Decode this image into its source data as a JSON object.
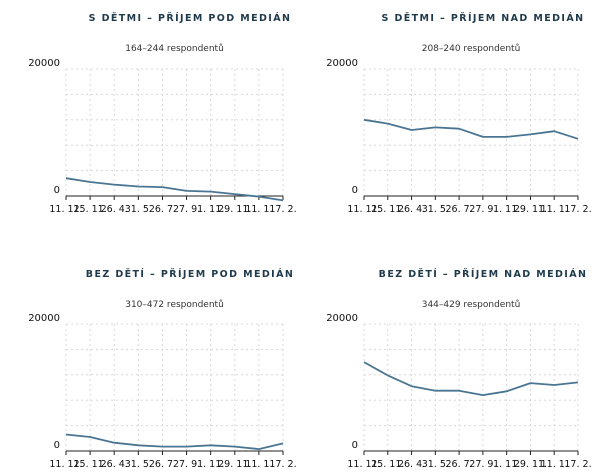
{
  "chart_data": [
    {
      "type": "line",
      "title": "S DĚTMI – PŘÍJEM POD MEDIÁN",
      "subtitle": "164–244 respondentů",
      "x": [
        "11. 11.",
        "25. 11.",
        "26. 4.",
        "31. 5.",
        "26. 7.",
        "27. 9.",
        "1. 11.",
        "29. 11.",
        "11. 1.",
        "17. 2."
      ],
      "series": [
        {
          "values": [
            2800,
            2200,
            1800,
            1500,
            1400,
            800,
            700,
            300,
            -100,
            -700
          ]
        }
      ],
      "ylim": [
        0,
        20000
      ],
      "yticks": [
        0,
        20000
      ],
      "grid": true,
      "color": "#4a7592"
    },
    {
      "type": "line",
      "title": "S DĚTMI – PŘÍJEM NAD MEDIÁN",
      "subtitle": "208–240 respondentů",
      "x": [
        "11. 11.",
        "25. 11.",
        "26. 4.",
        "31. 5.",
        "26. 7.",
        "27. 9.",
        "1. 11.",
        "29. 11.",
        "11. 1.",
        "17. 2."
      ],
      "series": [
        {
          "values": [
            12000,
            11400,
            10400,
            10800,
            10600,
            9300,
            9300,
            9700,
            10200,
            9000
          ]
        }
      ],
      "ylim": [
        0,
        20000
      ],
      "yticks": [
        0,
        20000
      ],
      "grid": true,
      "color": "#4a7592"
    },
    {
      "type": "line",
      "title": "BEZ DĚTÍ – PŘÍJEM POD MEDIÁN",
      "subtitle": "310–472 respondentů",
      "x": [
        "11. 11.",
        "25. 11.",
        "26. 4.",
        "31. 5.",
        "26. 7.",
        "27. 9.",
        "1. 11.",
        "29. 11.",
        "11. 1.",
        "17. 2."
      ],
      "series": [
        {
          "values": [
            2600,
            2200,
            1300,
            900,
            700,
            700,
            900,
            700,
            300,
            1200
          ]
        }
      ],
      "ylim": [
        0,
        20000
      ],
      "yticks": [
        0,
        20000
      ],
      "grid": true,
      "color": "#4a7592"
    },
    {
      "type": "line",
      "title": "BEZ DĚTÍ – PŘÍJEM NAD MEDIÁN",
      "subtitle": "344–429 respondentů",
      "x": [
        "11. 11.",
        "25. 11.",
        "26. 4.",
        "31. 5.",
        "26. 7.",
        "27. 9.",
        "1. 11.",
        "29. 11.",
        "11. 1.",
        "17. 2."
      ],
      "series": [
        {
          "values": [
            14000,
            11900,
            10200,
            9500,
            9500,
            8800,
            9400,
            10700,
            10400,
            10800
          ]
        }
      ],
      "ylim": [
        0,
        20000
      ],
      "yticks": [
        0,
        20000
      ],
      "grid": true,
      "color": "#4a7592"
    }
  ]
}
